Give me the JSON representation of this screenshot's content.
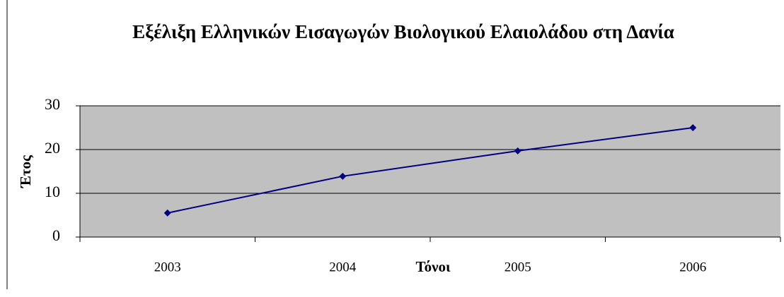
{
  "chart_data": {
    "type": "line",
    "title": "Εξέλιξη Ελληνικών Εισαγωγών Βιολογικού Ελαιολάδου στη Δανία",
    "x_label": "Τόνοι",
    "y_label": "Έτος",
    "categories": [
      "2003",
      "2004",
      "2005",
      "2006"
    ],
    "values": [
      5.5,
      13.9,
      19.7,
      25
    ],
    "color": "#000080",
    "plot_background": "#c0c0c0",
    "ylim": [
      0,
      30
    ],
    "yticks": [
      0,
      10,
      20,
      30
    ],
    "grid": true
  }
}
